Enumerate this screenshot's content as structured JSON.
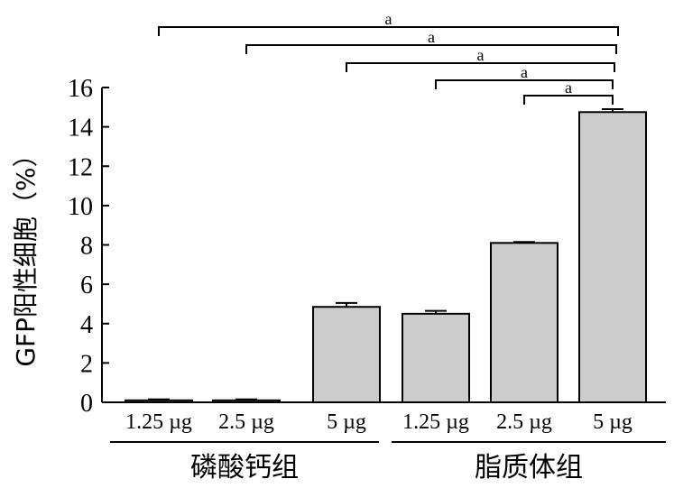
{
  "chart_data": {
    "type": "bar",
    "ylabel": "GFP阳性细胞（%）",
    "ylim": [
      0,
      16
    ],
    "yticks": [
      0,
      2,
      4,
      6,
      8,
      10,
      12,
      14,
      16
    ],
    "groups": [
      {
        "name": "磷酸钙组",
        "categories": [
          "1.25 µg",
          "2.5 µg",
          "5 µg"
        ],
        "values": [
          0.1,
          0.1,
          4.85
        ],
        "errors": [
          0.05,
          0.05,
          0.2
        ]
      },
      {
        "name": "脂质体组",
        "categories": [
          "1.25 µg",
          "2.5 µg",
          "5 µg"
        ],
        "values": [
          4.5,
          8.1,
          14.75
        ],
        "errors": [
          0.15,
          0.05,
          0.15
        ]
      }
    ],
    "bar_color": "#cccccc",
    "significance": [
      {
        "from": 0,
        "to": 5,
        "label": "a"
      },
      {
        "from": 1,
        "to": 5,
        "label": "a"
      },
      {
        "from": 2,
        "to": 5,
        "label": "a"
      },
      {
        "from": 3,
        "to": 5,
        "label": "a"
      },
      {
        "from": 4,
        "to": 5,
        "label": "a"
      }
    ]
  }
}
